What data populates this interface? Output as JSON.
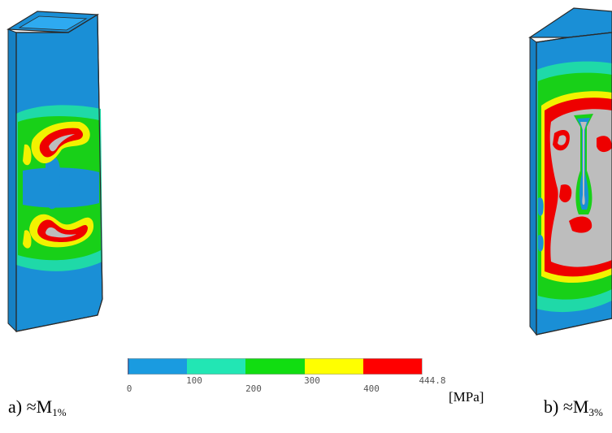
{
  "legend": {
    "unit": "[MPa]",
    "colors": [
      "#1a9be0",
      "#22e6b4",
      "#11dd11",
      "#ffff00",
      "#ff0000"
    ],
    "ticks": [
      "0",
      "100",
      "200",
      "300",
      "400",
      "444.8"
    ]
  },
  "captions": {
    "a_prefix": "a) ≈M",
    "a_sub": "1%",
    "b_prefix": "b) ≈M",
    "b_sub": "3%"
  },
  "palette": {
    "blue": "#1a8fd6",
    "teal": "#1fd9a8",
    "green": "#18d018",
    "yellow": "#f2f200",
    "red": "#ee0000",
    "grey": "#bdbdbd",
    "outline": "#2a2a2a"
  }
}
